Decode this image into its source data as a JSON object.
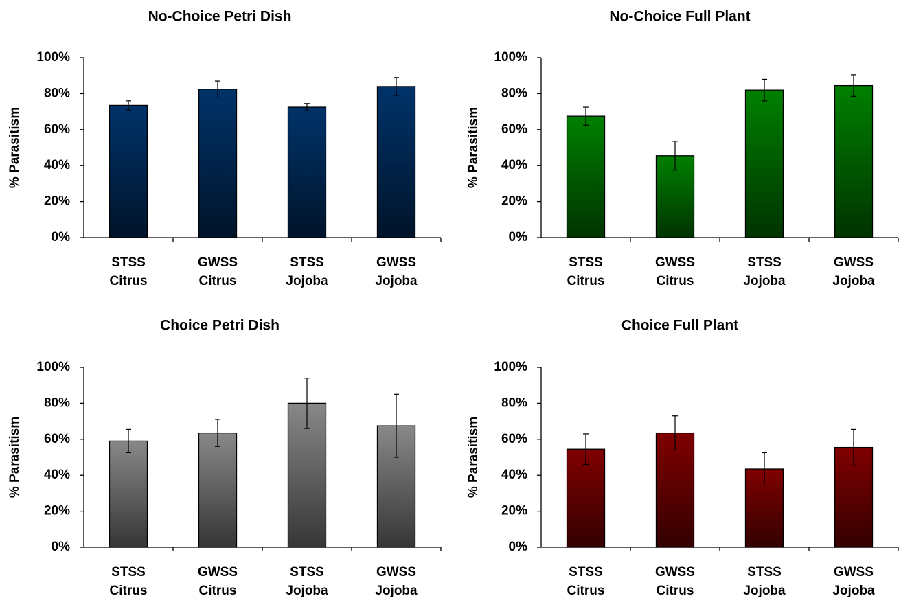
{
  "chart_data": [
    {
      "type": "bar",
      "title": "No-Choice Petri Dish",
      "y_label": "% Parasitism",
      "color": "#00336a",
      "categories": [
        [
          "STSS",
          "Citrus"
        ],
        [
          "GWSS",
          "Citrus"
        ],
        [
          "STSS",
          "Jojoba"
        ],
        [
          "GWSS",
          "Jojoba"
        ]
      ],
      "values": [
        73.5,
        82.5,
        72.5,
        84
      ],
      "errors": [
        2.5,
        4.5,
        2,
        5
      ],
      "ylim": [
        0,
        100
      ],
      "yticks": [
        {
          "value": 0,
          "label": "0%"
        },
        {
          "value": 20,
          "label": "20%"
        },
        {
          "value": 40,
          "label": "40%"
        },
        {
          "value": 60,
          "label": "60%"
        },
        {
          "value": 80,
          "label": "80%"
        },
        {
          "value": 100,
          "label": "100%"
        }
      ]
    },
    {
      "type": "bar",
      "title": "No-Choice Full Plant",
      "y_label": "% Parasitism",
      "color": "#008000",
      "categories": [
        [
          "STSS",
          "Citrus"
        ],
        [
          "GWSS",
          "Citrus"
        ],
        [
          "STSS",
          "Jojoba"
        ],
        [
          "GWSS",
          "Jojoba"
        ]
      ],
      "values": [
        67.5,
        45.5,
        82,
        84.5
      ],
      "errors": [
        5,
        8,
        6,
        6
      ],
      "ylim": [
        0,
        100
      ],
      "yticks": [
        {
          "value": 0,
          "label": "0%"
        },
        {
          "value": 20,
          "label": "20%"
        },
        {
          "value": 40,
          "label": "40%"
        },
        {
          "value": 60,
          "label": "60%"
        },
        {
          "value": 80,
          "label": "80%"
        },
        {
          "value": 100,
          "label": "100%"
        }
      ]
    },
    {
      "type": "bar",
      "title": "Choice Petri Dish",
      "y_label": "% Parasitism",
      "color": "#888888",
      "categories": [
        [
          "STSS",
          "Citrus"
        ],
        [
          "GWSS",
          "Citrus"
        ],
        [
          "STSS",
          "Jojoba"
        ],
        [
          "GWSS",
          "Jojoba"
        ]
      ],
      "values": [
        59,
        63.5,
        80,
        67.5
      ],
      "errors": [
        6.5,
        7.5,
        14,
        17.5
      ],
      "ylim": [
        0,
        100
      ],
      "yticks": [
        {
          "value": 0,
          "label": "0%"
        },
        {
          "value": 20,
          "label": "20%"
        },
        {
          "value": 40,
          "label": "40%"
        },
        {
          "value": 60,
          "label": "60%"
        },
        {
          "value": 80,
          "label": "80%"
        },
        {
          "value": 100,
          "label": "100%"
        }
      ]
    },
    {
      "type": "bar",
      "title": "Choice Full Plant",
      "y_label": "% Parasitism",
      "color": "#800000",
      "categories": [
        [
          "STSS",
          "Citrus"
        ],
        [
          "GWSS",
          "Citrus"
        ],
        [
          "STSS",
          "Jojoba"
        ],
        [
          "GWSS",
          "Jojoba"
        ]
      ],
      "values": [
        54.5,
        63.5,
        43.5,
        55.5
      ],
      "errors": [
        8.5,
        9.5,
        9,
        10
      ],
      "ylim": [
        0,
        100
      ],
      "yticks": [
        {
          "value": 0,
          "label": "0%"
        },
        {
          "value": 20,
          "label": "20%"
        },
        {
          "value": 40,
          "label": "40%"
        },
        {
          "value": 60,
          "label": "60%"
        },
        {
          "value": 80,
          "label": "80%"
        },
        {
          "value": 100,
          "label": "100%"
        }
      ]
    }
  ]
}
